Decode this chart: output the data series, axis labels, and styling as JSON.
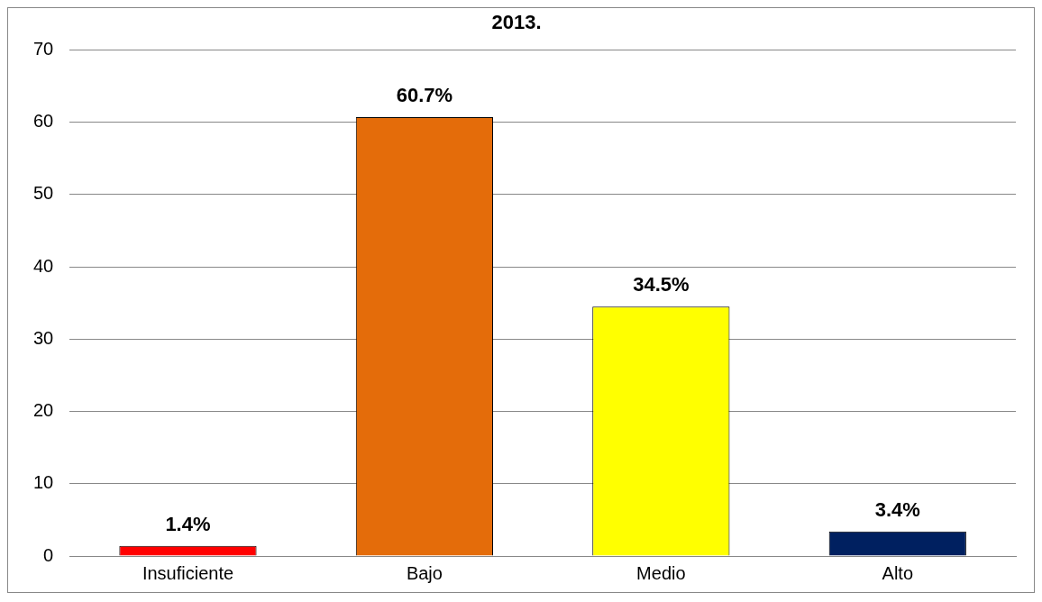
{
  "chart_data": {
    "type": "bar",
    "title": "2013.",
    "categories": [
      "Insuficiente",
      "Bajo",
      "Medio",
      "Alto"
    ],
    "values": [
      1.4,
      60.7,
      34.5,
      3.4
    ],
    "colors": [
      "#ff0000",
      "#e46c0a",
      "#ffff00",
      "#002060"
    ],
    "value_labels": [
      "1.4%",
      "60.7%",
      "34.5%",
      "3.4%"
    ],
    "ylim": [
      0,
      70
    ],
    "yticks": [
      0,
      10,
      20,
      30,
      40,
      50,
      60,
      70
    ],
    "grid": "y",
    "legend": false
  }
}
